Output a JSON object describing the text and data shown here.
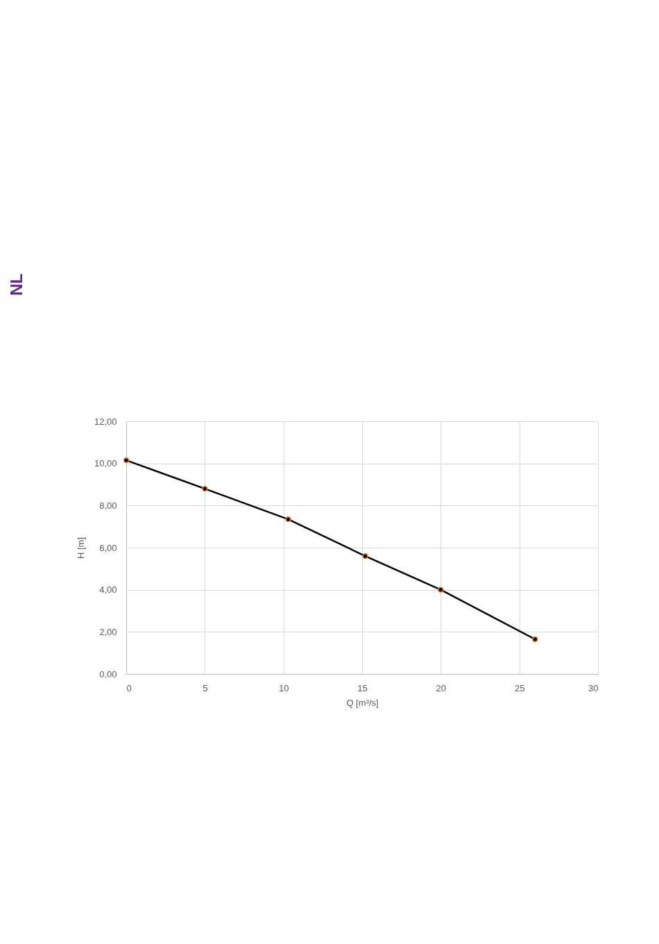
{
  "chart_data": {
    "type": "line",
    "xlabel": "Q [m³/s]",
    "ylabel": "H [m]",
    "x": [
      0,
      5,
      10.3,
      15.2,
      20,
      26
    ],
    "series": [
      {
        "color": "#000000",
        "values": [
          10.15,
          8.8,
          7.35,
          5.6,
          4.0,
          1.65
        ]
      }
    ],
    "xlim": [
      0,
      30
    ],
    "xticks": [
      0,
      5,
      10,
      15,
      20,
      25,
      30
    ],
    "ylim": [
      0,
      12
    ],
    "yticks": [
      {
        "value": 0,
        "label": "0,00"
      },
      {
        "value": 2,
        "label": "2,00"
      },
      {
        "value": 4,
        "label": "4,00"
      },
      {
        "value": 6,
        "label": "6,00"
      },
      {
        "value": 8,
        "label": "8,00"
      },
      {
        "value": 10,
        "label": "10,00"
      },
      {
        "value": 12,
        "label": "12,00"
      }
    ],
    "grid": true,
    "marker": "circle",
    "line_style": "solid",
    "annotations": [
      "NL"
    ]
  }
}
